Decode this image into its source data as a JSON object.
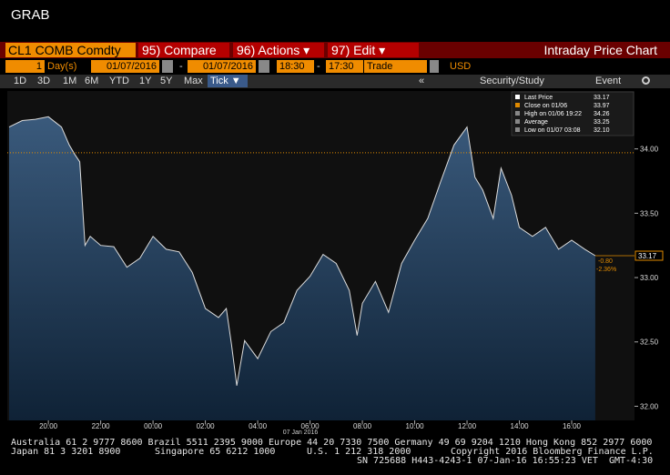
{
  "header": {
    "title": "GRAB"
  },
  "toolbar": {
    "ticker": "CL1 COMB Comdty",
    "buttons": [
      "95) Compare",
      "96) Actions ▾",
      "97) Edit ▾"
    ],
    "chart_name": "Intraday Price Chart"
  },
  "range_bar": {
    "period": "1",
    "unit": "Day(s)",
    "start_date": "01/07/2016",
    "separator": "-",
    "end_date": "01/07/2016",
    "start_time": "18:30",
    "end_time": "17:30",
    "field": "Trade",
    "currency": "USD"
  },
  "tabs": [
    "1D",
    "3D",
    "1M",
    "6M",
    "YTD",
    "1Y",
    "5Y",
    "Max",
    "Tick ▼"
  ],
  "tools": [
    "«",
    "Security/Study",
    "Event"
  ],
  "chart_data": {
    "type": "area",
    "date_label": "07 Jan 2016",
    "x": [
      -5.5,
      -5,
      -4.5,
      -4,
      -3.5,
      -3.2,
      -3,
      -2.8,
      -2.6,
      -2.4,
      -2,
      -1.5,
      -1,
      -0.5,
      0,
      0.5,
      1,
      1.5,
      2,
      2.5,
      2.8,
      3,
      3.2,
      3.5,
      4,
      4.5,
      5,
      5.5,
      6,
      6.5,
      7,
      7.5,
      7.8,
      8,
      8.5,
      9,
      9.5,
      10,
      10.5,
      11,
      11.5,
      12,
      12.3,
      12.6,
      13,
      13.3,
      13.7,
      14,
      14.5,
      15,
      15.5,
      16,
      16.5,
      16.9
    ],
    "series": [
      {
        "name": "Last Price",
        "color": "#dcdcdc",
        "values": [
          34.17,
          34.22,
          34.23,
          34.25,
          34.17,
          34.03,
          33.96,
          33.9,
          33.25,
          33.32,
          33.25,
          33.24,
          33.08,
          33.15,
          33.32,
          33.22,
          33.2,
          33.04,
          32.76,
          32.69,
          32.76,
          32.48,
          32.16,
          32.51,
          32.37,
          32.58,
          32.65,
          32.9,
          33.01,
          33.18,
          33.11,
          32.9,
          32.55,
          32.8,
          32.97,
          32.73,
          33.11,
          33.29,
          33.46,
          33.75,
          34.03,
          34.17,
          33.78,
          33.68,
          33.46,
          33.85,
          33.64,
          33.39,
          33.32,
          33.39,
          33.22,
          33.29,
          33.22,
          33.17
        ]
      }
    ],
    "xlim": [
      -5.57,
      18.4
    ],
    "xticks": [
      {
        "value": -4,
        "label": "20:00"
      },
      {
        "value": -2,
        "label": "22:00"
      },
      {
        "value": 0,
        "label": "00:00"
      },
      {
        "value": 2,
        "label": "02:00"
      },
      {
        "value": 4,
        "label": "04:00"
      },
      {
        "value": 6,
        "label": "06:00"
      },
      {
        "value": 8,
        "label": "08:00"
      },
      {
        "value": 10,
        "label": "10:00"
      },
      {
        "value": 12,
        "label": "12:00"
      },
      {
        "value": 14,
        "label": "14:00"
      },
      {
        "value": 16,
        "label": "16:00"
      }
    ],
    "ylim": [
      31.89,
      34.45
    ],
    "yticks": [
      {
        "value": 32,
        "label": "32.00"
      },
      {
        "value": 32.5,
        "label": "32.50"
      },
      {
        "value": 33,
        "label": "33.00"
      },
      {
        "value": 33.5,
        "label": "33.50"
      },
      {
        "value": 34,
        "label": "34.00"
      }
    ],
    "reference_line": 33.97,
    "reference_color": "#e08a00",
    "last_price": 33.17,
    "change": "-0.80",
    "change_pct": "-2.36%",
    "legend": [
      {
        "label": "Close on 01/06",
        "value": "33.97"
      },
      {
        "label": "High on 01/06 19:22",
        "value": "34.26"
      },
      {
        "label": "Average",
        "value": "33.25"
      },
      {
        "label": "Low on 01/07 03:08",
        "value": "32.10"
      }
    ]
  },
  "footer": {
    "lines": [
      [
        "Australia 61 2 9777 8600 Brazil 5511 2395 9000 Europe 44 20 7330 7500 Germany 49 69 9204 1210 Hong Kong 852 2977 6000"
      ],
      [
        "Japan 81 3 3201 8900",
        "Singapore 65 6212 1000",
        "U.S. 1 212 318 2000",
        "Copyright 2016 Bloomberg Finance L.P."
      ],
      [
        "SN 725688 H443-4243-1 07-Jan-16 16:55:23 VET  GMT-4:30"
      ]
    ]
  }
}
